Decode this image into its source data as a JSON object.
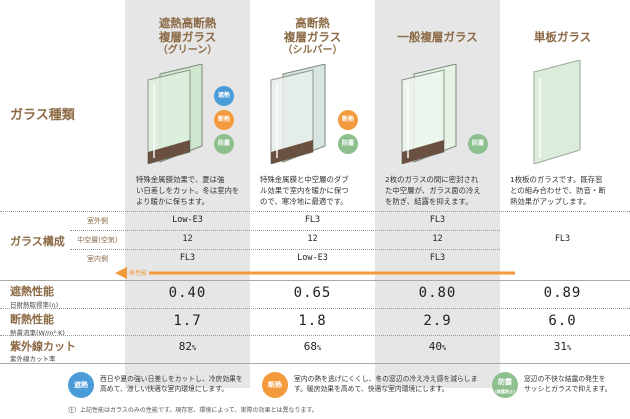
{
  "colors": {
    "heat": "#4a9cd8",
    "insulation": "#f39a3c",
    "condensation": "#8ebf8f",
    "accent": "#8c6a45",
    "arrow": "#f39a3c"
  },
  "row_labels": {
    "glass_type": "ガラス種類",
    "structure": "ガラス構成",
    "heat": "遮熱性能",
    "heat_sub": "日射熱取得率(η)",
    "insulation": "断熱性能",
    "insulation_sub": "熱貫流率(W/m²·K)",
    "uv": "紫外線カット",
    "uv_sub": "紫外線カット率"
  },
  "layer_labels": {
    "outer": "室外側",
    "middle": "中空層(空気)",
    "inner": "室内側"
  },
  "arrow_label": "高性能",
  "columns": [
    {
      "title": "遮熱高断熱",
      "title2": "複層ガラス",
      "subtitle": "（グリーン）",
      "description": [
        "特殊金属膜効果で、夏は強",
        "い日差しをカット。冬は室内を",
        "より暖かに保ちます。"
      ],
      "outer": "Low-E3",
      "middle": "12",
      "inner": "FL3",
      "heat": "0.40",
      "insulation": "1.7",
      "uv": "82",
      "badges": [
        "遮熱",
        "断熱",
        "防露"
      ]
    },
    {
      "title": "高断熱",
      "title2": "複層ガラス",
      "subtitle": "（シルバー）",
      "description": [
        "特殊金属膜と中空層のダブ",
        "ル効果で室内を暖かに保つ",
        "ので、寒冷地に最適です。"
      ],
      "outer": "FL3",
      "middle": "12",
      "inner": "Low-E3",
      "heat": "0.65",
      "insulation": "1.8",
      "uv": "68",
      "badges": [
        "断熱",
        "防露"
      ]
    },
    {
      "title": "一般複層ガラス",
      "title2": "",
      "subtitle": "",
      "description": [
        "2枚のガラスの間に密封され",
        "た中空層が、ガラス面の冷え",
        "を防ぎ、結露を抑えます。"
      ],
      "outer": "FL3",
      "middle": "12",
      "inner": "FL3",
      "heat": "0.80",
      "insulation": "2.9",
      "uv": "40",
      "badges": [
        "防露"
      ]
    },
    {
      "title": "単板ガラス",
      "title2": "",
      "subtitle": "",
      "description": [
        "1枚板のガラスです。既存窓",
        "との組み合わせで、防音・断",
        "熱効果がアップします。"
      ],
      "single": "FL3",
      "heat": "0.89",
      "insulation": "6.0",
      "uv": "31",
      "badges": []
    }
  ],
  "pct_unit": "%",
  "footer": [
    {
      "badge": "遮熱",
      "lines": [
        "西日や夏の強い日差しをカットし、冷房効果を",
        "高めて、涼しい快適な室内環境にします。"
      ]
    },
    {
      "badge": "断熱",
      "lines": [
        "室内の熱を逃げにくくし、冬の窓辺の冷え冷え感を減らしま",
        "す。暖房効果を高めて、快適な室内環境にします。"
      ]
    },
    {
      "badge": "防露",
      "badge_sub": "(結露防止)",
      "lines": [
        "窓辺の不快な結露の発生を",
        "サッシとガラスで抑えます。"
      ]
    }
  ],
  "note": "注）上記性能はガラスのみの性能です。現存窓、環境によって、実際の効果とは異なります。"
}
